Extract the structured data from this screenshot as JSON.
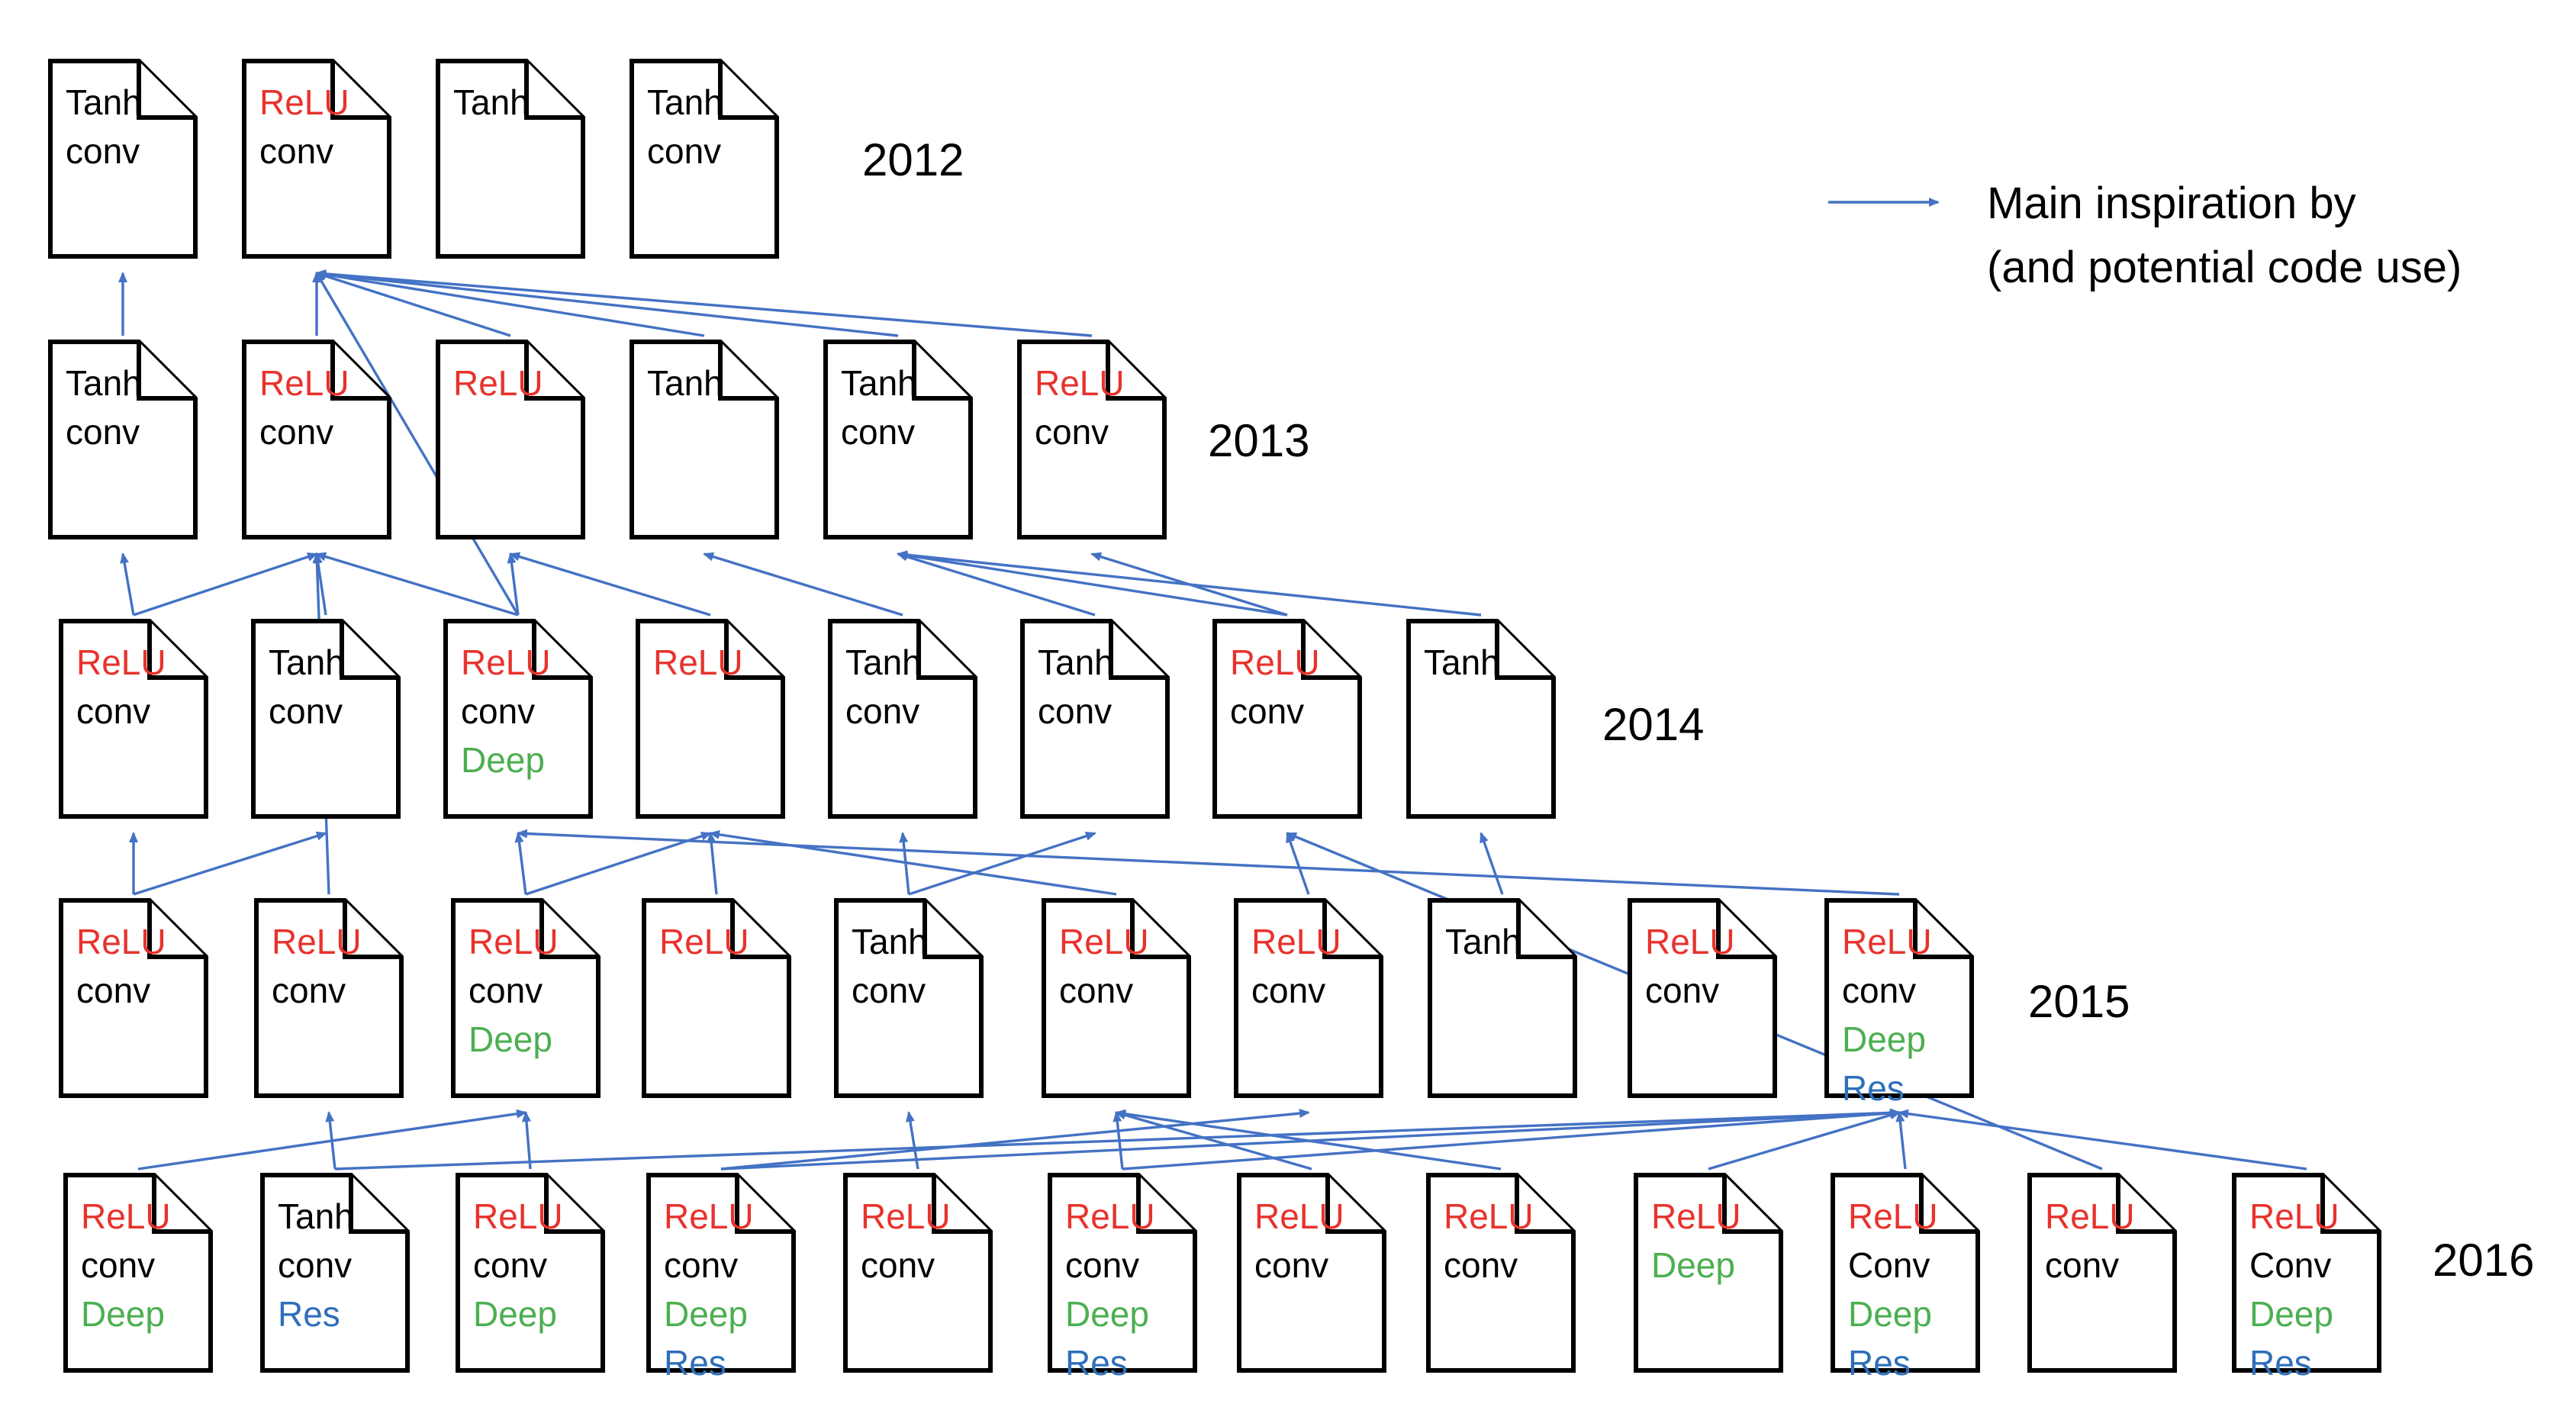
{
  "colors": {
    "ReLU": "#E8322C",
    "Tanh": "#000000",
    "conv": "#000000",
    "Conv": "#000000",
    "Deep": "#4CAF50",
    "Res": "#2E6FBA",
    "arrow": "#4472C4"
  },
  "years": [
    "2012",
    "2013",
    "2014",
    "2015",
    "2016"
  ],
  "legend": {
    "line1": "Main inspiration by",
    "line2": "(and potential code use)"
  },
  "rows": [
    {
      "year": "2012",
      "docs": [
        {
          "id": "a0",
          "labels": [
            "Tanh",
            "conv"
          ]
        },
        {
          "id": "a1",
          "labels": [
            "ReLU",
            "conv"
          ]
        },
        {
          "id": "a2",
          "labels": [
            "Tanh"
          ]
        },
        {
          "id": "a3",
          "labels": [
            "Tanh",
            "conv"
          ]
        }
      ]
    },
    {
      "year": "2013",
      "docs": [
        {
          "id": "b0",
          "labels": [
            "Tanh",
            "conv"
          ]
        },
        {
          "id": "b1",
          "labels": [
            "ReLU",
            "conv"
          ]
        },
        {
          "id": "b2",
          "labels": [
            "ReLU"
          ]
        },
        {
          "id": "b3",
          "labels": [
            "Tanh"
          ]
        },
        {
          "id": "b4",
          "labels": [
            "Tanh",
            "conv"
          ]
        },
        {
          "id": "b5",
          "labels": [
            "ReLU",
            "conv"
          ]
        }
      ]
    },
    {
      "year": "2014",
      "docs": [
        {
          "id": "c0",
          "labels": [
            "ReLU",
            "conv"
          ]
        },
        {
          "id": "c1",
          "labels": [
            "Tanh",
            "conv"
          ]
        },
        {
          "id": "c2",
          "labels": [
            "ReLU",
            "conv",
            "Deep"
          ]
        },
        {
          "id": "c3",
          "labels": [
            "ReLU"
          ]
        },
        {
          "id": "c4",
          "labels": [
            "Tanh",
            "conv"
          ]
        },
        {
          "id": "c5",
          "labels": [
            "Tanh",
            "conv"
          ]
        },
        {
          "id": "c6",
          "labels": [
            "ReLU",
            "conv"
          ]
        },
        {
          "id": "c7",
          "labels": [
            "Tanh"
          ]
        }
      ]
    },
    {
      "year": "2015",
      "docs": [
        {
          "id": "d0",
          "labels": [
            "ReLU",
            "conv"
          ]
        },
        {
          "id": "d1",
          "labels": [
            "ReLU",
            "conv"
          ]
        },
        {
          "id": "d2",
          "labels": [
            "ReLU",
            "conv",
            "Deep"
          ]
        },
        {
          "id": "d3",
          "labels": [
            "ReLU"
          ]
        },
        {
          "id": "d4",
          "labels": [
            "Tanh",
            "conv"
          ]
        },
        {
          "id": "d5",
          "labels": [
            "ReLU",
            "conv"
          ]
        },
        {
          "id": "d6",
          "labels": [
            "ReLU",
            "conv"
          ]
        },
        {
          "id": "d7",
          "labels": [
            "Tanh"
          ]
        },
        {
          "id": "d8",
          "labels": [
            "ReLU",
            "conv"
          ]
        },
        {
          "id": "d9",
          "labels": [
            "ReLU",
            "conv",
            "Deep",
            "Res"
          ]
        }
      ]
    },
    {
      "year": "2016",
      "docs": [
        {
          "id": "e0",
          "labels": [
            "ReLU",
            "conv",
            "Deep"
          ]
        },
        {
          "id": "e1",
          "labels": [
            "Tanh",
            "conv",
            "Res"
          ]
        },
        {
          "id": "e2",
          "labels": [
            "ReLU",
            "conv",
            "Deep"
          ]
        },
        {
          "id": "e3",
          "labels": [
            "ReLU",
            "conv",
            "Deep",
            "Res"
          ]
        },
        {
          "id": "e4",
          "labels": [
            "ReLU",
            "conv"
          ]
        },
        {
          "id": "e5",
          "labels": [
            "ReLU",
            "conv",
            "Deep",
            "Res"
          ]
        },
        {
          "id": "e6",
          "labels": [
            "ReLU",
            "conv"
          ]
        },
        {
          "id": "e7",
          "labels": [
            "ReLU",
            "conv"
          ]
        },
        {
          "id": "e8",
          "labels": [
            "ReLU",
            "Deep"
          ]
        },
        {
          "id": "e9",
          "labels": [
            "ReLU",
            "Conv",
            "Deep",
            "Res"
          ]
        },
        {
          "id": "e10",
          "labels": [
            "ReLU",
            "conv"
          ]
        },
        {
          "id": "e11",
          "labels": [
            "ReLU",
            "Conv",
            "Deep",
            "Res"
          ]
        }
      ]
    }
  ],
  "edges": [
    [
      "b0",
      "a0"
    ],
    [
      "b1",
      "a1"
    ],
    [
      "b2",
      "a1"
    ],
    [
      "b3",
      "a1"
    ],
    [
      "b4",
      "a1"
    ],
    [
      "b5",
      "a1"
    ],
    [
      "c0",
      "b0"
    ],
    [
      "c0",
      "b1"
    ],
    [
      "c1",
      "b1"
    ],
    [
      "c2",
      "b1"
    ],
    [
      "c2",
      "b2"
    ],
    [
      "c2",
      "a1"
    ],
    [
      "c3",
      "b2"
    ],
    [
      "c4",
      "b3"
    ],
    [
      "c5",
      "b4"
    ],
    [
      "c6",
      "b4"
    ],
    [
      "c6",
      "b5"
    ],
    [
      "c7",
      "b4"
    ],
    [
      "d0",
      "c0"
    ],
    [
      "d0",
      "c1"
    ],
    [
      "d1",
      "b1"
    ],
    [
      "d2",
      "c2"
    ],
    [
      "d2",
      "c3"
    ],
    [
      "d3",
      "c3"
    ],
    [
      "d4",
      "c4"
    ],
    [
      "d4",
      "c5"
    ],
    [
      "d5",
      "c3"
    ],
    [
      "d6",
      "c6"
    ],
    [
      "d7",
      "c7"
    ],
    [
      "d9",
      "c2"
    ],
    [
      "e10",
      "c6"
    ],
    [
      "e0",
      "d2"
    ],
    [
      "e1",
      "d1"
    ],
    [
      "e2",
      "d2"
    ],
    [
      "e3",
      "d6"
    ],
    [
      "e4",
      "d4"
    ],
    [
      "e5",
      "d5"
    ],
    [
      "e6",
      "d5"
    ],
    [
      "e7",
      "d5"
    ],
    [
      "e8",
      "d9"
    ],
    [
      "e9",
      "d9"
    ],
    [
      "e11",
      "d9"
    ],
    [
      "e1",
      "d9"
    ],
    [
      "e3",
      "d9"
    ],
    [
      "e5",
      "d9"
    ]
  ]
}
